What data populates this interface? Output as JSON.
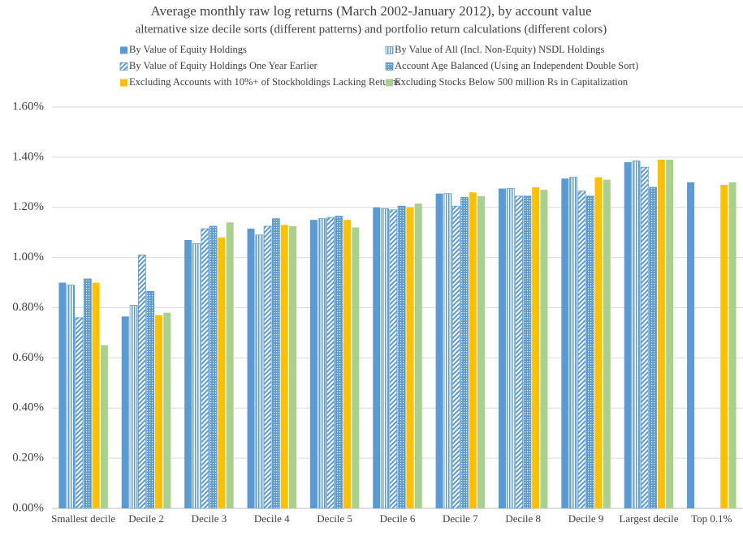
{
  "chart_data": {
    "type": "bar",
    "title": "Average monthly raw log returns (March 2002-January 2012), by account value",
    "subtitle": "alternative size decile sorts (different patterns) and portfolio return calculations (different colors)",
    "categories": [
      "Smallest decile",
      "Decile 2",
      "Decile 3",
      "Decile 4",
      "Decile 5",
      "Decile 6",
      "Decile 7",
      "Decile 8",
      "Decile 9",
      "Largest decile",
      "Top 0.1%"
    ],
    "series": [
      {
        "name": "By Value of Equity Holdings",
        "color": "#5b9bd5",
        "pattern": "solid",
        "values": [
          0.9,
          0.765,
          1.07,
          1.115,
          1.15,
          1.2,
          1.255,
          1.275,
          1.315,
          1.38,
          1.3
        ]
      },
      {
        "name": "By Value of All (Incl. Non-Equity) NSDL Holdings",
        "color": "#5b9bd5",
        "pattern": "vertical",
        "values": [
          0.89,
          0.81,
          1.055,
          1.09,
          1.155,
          1.195,
          1.255,
          1.275,
          1.32,
          1.385,
          null
        ]
      },
      {
        "name": "By Value of Equity Holdings One Year Earlier",
        "color": "#5b9bd5",
        "pattern": "diagonal",
        "values": [
          0.76,
          1.01,
          1.115,
          1.125,
          1.16,
          1.19,
          1.205,
          1.245,
          1.265,
          1.36,
          null
        ]
      },
      {
        "name": "Account Age Balanced (Using an Independent Double Sort)",
        "color": "#5b9bd5",
        "pattern": "dots",
        "values": [
          0.915,
          0.865,
          1.125,
          1.155,
          1.165,
          1.205,
          1.24,
          1.245,
          1.245,
          1.28,
          null
        ]
      },
      {
        "name": "Excluding Accounts with 10%+ of Stockholdings Lacking Returns",
        "color": "#ffc000",
        "pattern": "solid",
        "values": [
          0.9,
          0.77,
          1.08,
          1.13,
          1.15,
          1.2,
          1.26,
          1.28,
          1.32,
          1.39,
          1.29
        ]
      },
      {
        "name": "Excluding Stocks Below 500 million Rs in Capitalization",
        "color": "#a9d18e",
        "pattern": "solid",
        "values": [
          0.65,
          0.78,
          1.14,
          1.125,
          1.12,
          1.215,
          1.245,
          1.27,
          1.31,
          1.39,
          1.3
        ]
      }
    ],
    "ylim": [
      0,
      1.6
    ],
    "yticks": [
      {
        "value": 0,
        "label": "0.00%"
      },
      {
        "value": 0.2,
        "label": "0.20%"
      },
      {
        "value": 0.4,
        "label": "0.40%"
      },
      {
        "value": 0.6,
        "label": "0.60%"
      },
      {
        "value": 0.8,
        "label": "0.80%"
      },
      {
        "value": 1.0,
        "label": "1.00%"
      },
      {
        "value": 1.2,
        "label": "1.20%"
      },
      {
        "value": 1.4,
        "label": "1.40%"
      },
      {
        "value": 1.6,
        "label": "1.60%"
      }
    ],
    "grid": true
  }
}
